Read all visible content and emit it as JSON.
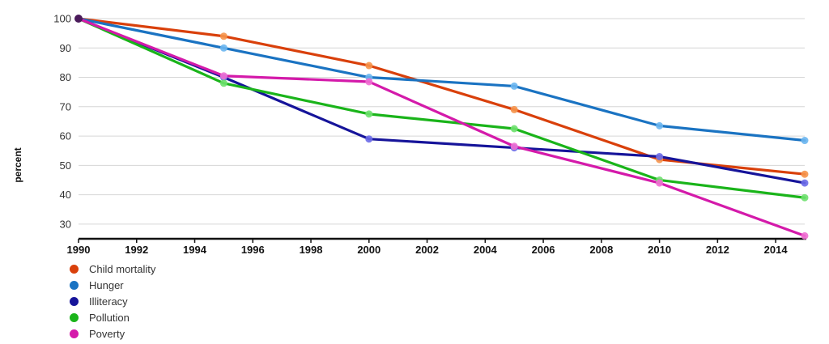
{
  "chart_data": {
    "type": "line",
    "title": "",
    "xlabel": "",
    "ylabel": "percent",
    "x": [
      1990,
      1995,
      2000,
      2005,
      2010,
      2015
    ],
    "xticks": [
      "1990",
      "1992",
      "1994",
      "1996",
      "1998",
      "2000",
      "2002",
      "2004",
      "2006",
      "2008",
      "2010",
      "2012",
      "2014"
    ],
    "yticks": [
      "100",
      "90",
      "80",
      "70",
      "60",
      "50",
      "40",
      "30"
    ],
    "ylim": [
      25,
      100
    ],
    "xlim": [
      1990,
      2015
    ],
    "grid": true,
    "legend_position": "bottom-left",
    "series": [
      {
        "name": "Child mortality",
        "color": "#d9400b",
        "marker_color": "#f5934a",
        "values": [
          100,
          94,
          84,
          69,
          52,
          47
        ]
      },
      {
        "name": "Hunger",
        "color": "#1a73c2",
        "marker_color": "#6cb6ef",
        "values": [
          100,
          90,
          80,
          77,
          63.5,
          58.5
        ]
      },
      {
        "name": "Illiteracy",
        "color": "#16149a",
        "marker_color": "#6a6ae8",
        "values": [
          100,
          80,
          59,
          56,
          53,
          44
        ]
      },
      {
        "name": "Pollution",
        "color": "#1ab41a",
        "marker_color": "#6ee06e",
        "values": [
          100,
          78,
          67.5,
          62.5,
          45,
          39
        ]
      },
      {
        "name": "Poverty",
        "color": "#d41aaa",
        "marker_color": "#ef6fd2",
        "values": [
          100,
          80.5,
          78.5,
          56.5,
          44,
          26
        ]
      }
    ]
  }
}
